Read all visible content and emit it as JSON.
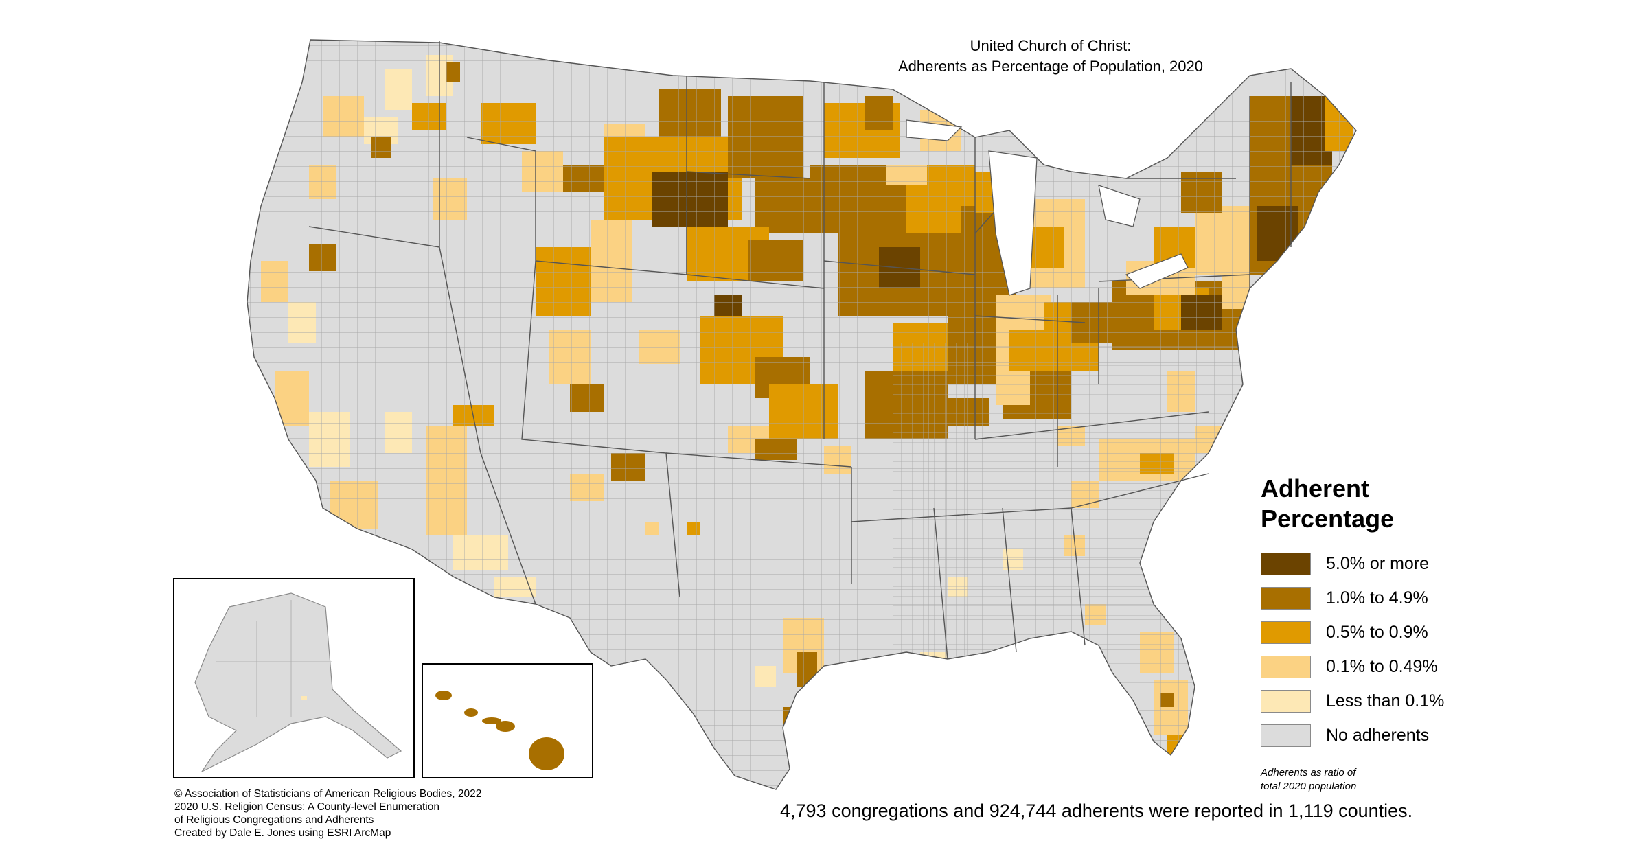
{
  "title": {
    "line1": "United Church of Christ:",
    "line2": "Adherents as Percentage of Population, 2020"
  },
  "legend": {
    "title_line1": "Adherent",
    "title_line2": "Percentage",
    "items": [
      {
        "label": "5.0% or more",
        "color": "#6b4300"
      },
      {
        "label": "1.0% to 4.9%",
        "color": "#a86f00"
      },
      {
        "label": "0.5% to 0.9%",
        "color": "#e09a00"
      },
      {
        "label": "0.1% to 0.49%",
        "color": "#fbd283"
      },
      {
        "label": "Less than 0.1%",
        "color": "#fde8b5"
      },
      {
        "label": "No adherents",
        "color": "#dcdcdc"
      }
    ],
    "note_line1": "Adherents as ratio of",
    "note_line2": "total 2020 population"
  },
  "credits": {
    "line1": "© Association of Statisticians of American Religious Bodies, 2022",
    "line2": "2020 U.S. Religion Census: A County-level Enumeration",
    "line3": "of Religious Congregations and Adherents",
    "line4": "Created by Dale E. Jones using ESRI ArcMap"
  },
  "summary": "4,793 congregations and 924,744 adherents were reported in 1,119 counties.",
  "colors": {
    "no_adherents": "#dcdcdc",
    "county_border": "#9a9a9a",
    "state_border": "#555555"
  },
  "icons": {
    "main_map": "us-county-choropleth-map",
    "alaska": "alaska-inset-map",
    "hawaii": "hawaii-inset-map"
  }
}
